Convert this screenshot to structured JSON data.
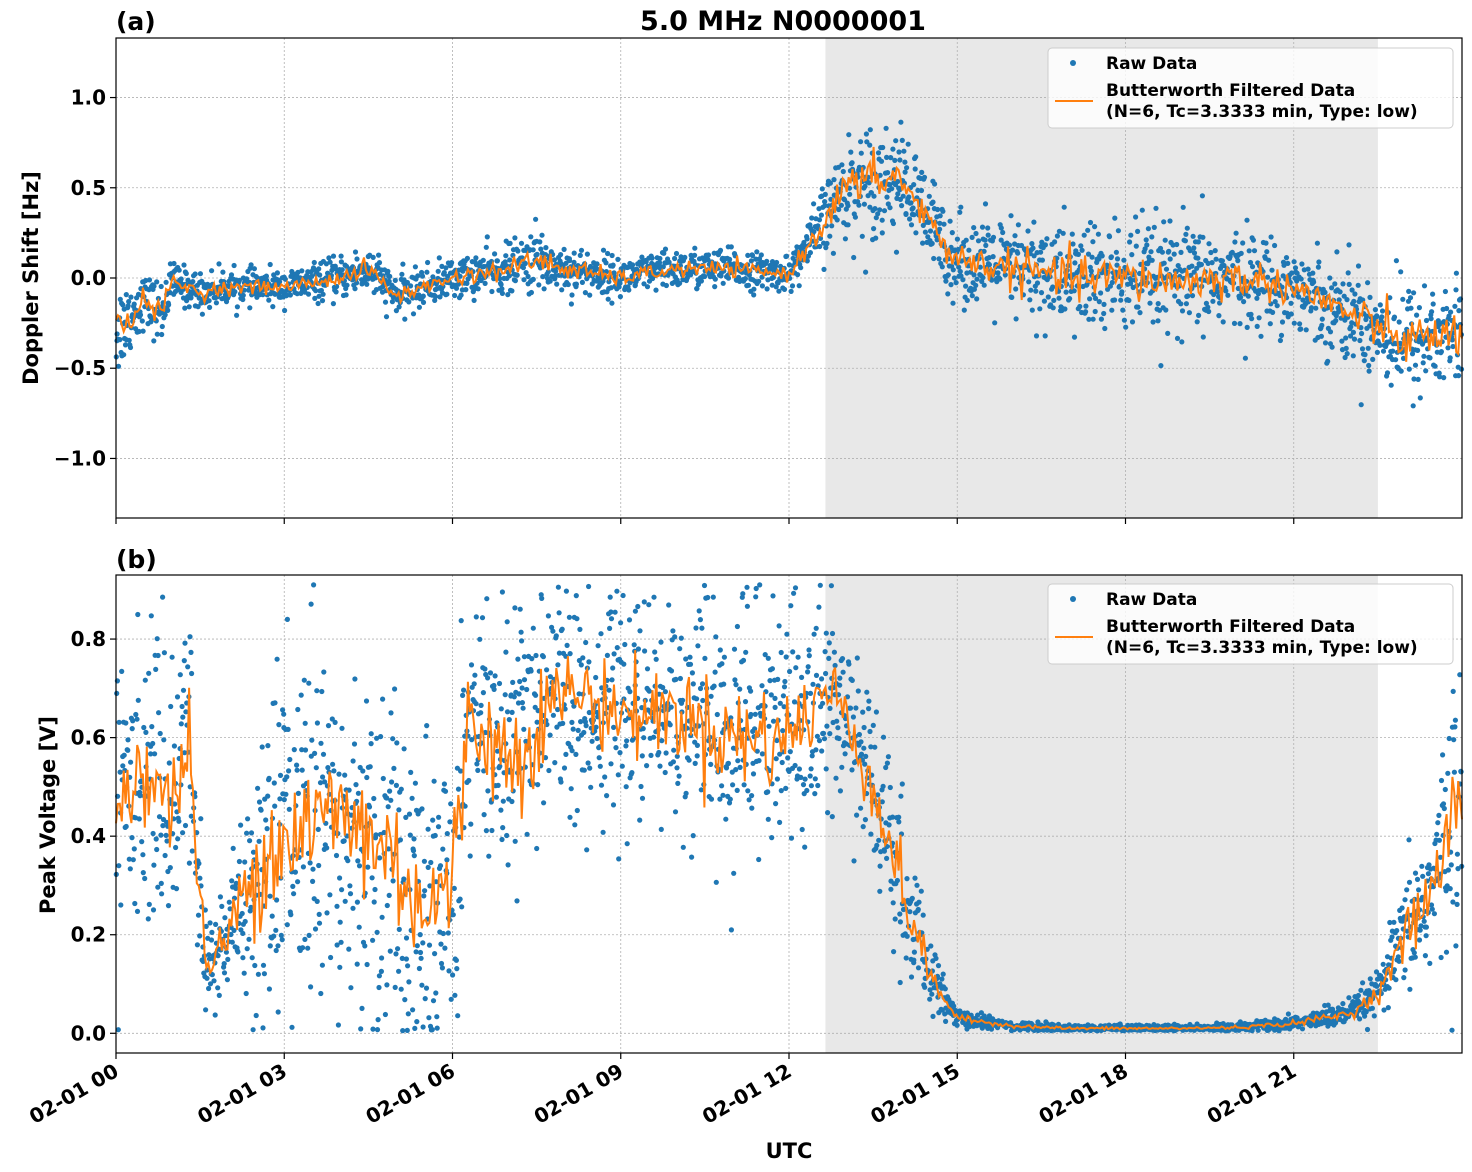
{
  "figure": {
    "title": "5.0 MHz N0000001",
    "xlabel": "UTC",
    "x_ticks": [
      "02-01 00",
      "02-01 03",
      "02-01 06",
      "02-01 09",
      "02-01 12",
      "02-01 15",
      "02-01 18",
      "02-01 21"
    ],
    "shaded_region": {
      "start_hour": 12.65,
      "end_hour": 22.5,
      "color": "#e8e8e8"
    },
    "colors": {
      "raw": "#1f77b4",
      "filtered": "#ff7f0e",
      "grid": "#b0b0b0"
    }
  },
  "legend": {
    "raw_label": "Raw Data",
    "filtered_line1": "Butterworth Filtered Data",
    "filtered_line2": "(N=6, Tc=3.3333 min, Type: low)"
  },
  "chart_data": [
    {
      "type": "scatter",
      "panel_label": "(a)",
      "ylabel": "Doppler Shift [Hz]",
      "xlim_hours": [
        0,
        24
      ],
      "ylim": [
        -1.33,
        1.33
      ],
      "y_ticks": [
        1.0,
        0.5,
        0.0,
        -0.5,
        -1.0
      ],
      "y_tick_labels": [
        "1.0",
        "0.5",
        "0.0",
        "−0.5",
        "−1.0"
      ],
      "legend_position": "top-right",
      "series": [
        {
          "name": "Raw Data",
          "style": "points",
          "x_hours": [
            0,
            0.5,
            0.8,
            1,
            1.5,
            2,
            3,
            4,
            4.5,
            5,
            6,
            7,
            7.5,
            8,
            9,
            10,
            11,
            12,
            12.5,
            13,
            13.5,
            14,
            14.5,
            15,
            16,
            17,
            18,
            19,
            20,
            21,
            22,
            23,
            24
          ],
          "y_center": [
            -0.3,
            -0.12,
            -0.2,
            -0.02,
            -0.08,
            -0.05,
            -0.05,
            0.0,
            0.05,
            -0.1,
            0.0,
            0.05,
            0.1,
            0.05,
            0.0,
            0.05,
            0.05,
            0.02,
            0.25,
            0.5,
            0.55,
            0.55,
            0.3,
            0.1,
            0.05,
            0.0,
            0.0,
            -0.02,
            0.0,
            -0.05,
            -0.2,
            -0.35,
            -0.3
          ],
          "y_spread": [
            0.3,
            0.15,
            0.2,
            0.12,
            0.12,
            0.1,
            0.1,
            0.12,
            0.15,
            0.12,
            0.12,
            0.15,
            0.2,
            0.15,
            0.12,
            0.12,
            0.12,
            0.1,
            0.2,
            0.3,
            0.35,
            0.3,
            0.3,
            0.25,
            0.3,
            0.35,
            0.35,
            0.35,
            0.3,
            0.25,
            0.3,
            0.35,
            0.35
          ]
        },
        {
          "name": "Butterworth Filtered Data\n(N=6, Tc=3.3333 min, Type: low)",
          "style": "line",
          "x_hours": [
            0,
            0.5,
            0.8,
            1,
            1.5,
            2,
            3,
            4,
            4.5,
            5,
            6,
            7,
            7.5,
            8,
            9,
            10,
            11,
            12,
            12.5,
            13,
            13.5,
            14,
            14.5,
            15,
            16,
            17,
            18,
            19,
            20,
            21,
            22,
            23,
            24
          ],
          "y": [
            -0.3,
            -0.12,
            -0.2,
            -0.02,
            -0.08,
            -0.05,
            -0.05,
            0.0,
            0.05,
            -0.1,
            0.0,
            0.05,
            0.1,
            0.05,
            0.0,
            0.05,
            0.05,
            0.02,
            0.25,
            0.5,
            0.55,
            0.55,
            0.3,
            0.1,
            0.05,
            0.0,
            0.0,
            -0.02,
            0.0,
            -0.05,
            -0.2,
            -0.35,
            -0.3
          ]
        }
      ]
    },
    {
      "type": "scatter",
      "panel_label": "(b)",
      "ylabel": "Peak Voltage [V]",
      "xlim_hours": [
        0,
        24
      ],
      "ylim": [
        -0.04,
        0.93
      ],
      "y_ticks": [
        0.8,
        0.6,
        0.4,
        0.2,
        0.0
      ],
      "y_tick_labels": [
        "0.8",
        "0.6",
        "0.4",
        "0.2",
        "0.0"
      ],
      "legend_position": "top-right",
      "series": [
        {
          "name": "Raw Data",
          "style": "points",
          "x_hours": [
            0,
            0.5,
            1,
            1.3,
            1.6,
            2,
            2.5,
            3,
            4,
            5,
            5.5,
            6,
            6.3,
            7,
            8,
            9,
            10,
            11,
            12,
            12.7,
            13,
            13.5,
            14,
            14.5,
            15,
            16,
            17,
            18,
            19,
            20,
            21,
            22,
            22.5,
            23,
            23.5,
            24
          ],
          "y_center": [
            0.45,
            0.55,
            0.45,
            0.6,
            0.12,
            0.2,
            0.35,
            0.4,
            0.45,
            0.35,
            0.25,
            0.3,
            0.65,
            0.55,
            0.7,
            0.65,
            0.65,
            0.6,
            0.6,
            0.7,
            0.65,
            0.5,
            0.3,
            0.12,
            0.03,
            0.015,
            0.01,
            0.01,
            0.01,
            0.012,
            0.02,
            0.04,
            0.08,
            0.2,
            0.3,
            0.5
          ],
          "y_spread": [
            0.3,
            0.3,
            0.3,
            0.3,
            0.12,
            0.15,
            0.35,
            0.4,
            0.4,
            0.4,
            0.35,
            0.4,
            0.3,
            0.35,
            0.25,
            0.25,
            0.25,
            0.3,
            0.3,
            0.2,
            0.2,
            0.2,
            0.2,
            0.08,
            0.02,
            0.01,
            0.008,
            0.008,
            0.008,
            0.01,
            0.015,
            0.03,
            0.05,
            0.12,
            0.2,
            0.35
          ]
        },
        {
          "name": "Butterworth Filtered Data\n(N=6, Tc=3.3333 min, Type: low)",
          "style": "line",
          "x_hours": [
            0,
            0.5,
            1,
            1.3,
            1.6,
            2,
            2.5,
            3,
            4,
            5,
            5.5,
            6,
            6.3,
            7,
            8,
            9,
            10,
            11,
            12,
            12.7,
            13,
            13.5,
            14,
            14.5,
            15,
            16,
            17,
            18,
            19,
            20,
            21,
            22,
            22.5,
            23,
            23.5,
            24
          ],
          "y": [
            0.45,
            0.55,
            0.45,
            0.6,
            0.12,
            0.2,
            0.35,
            0.4,
            0.45,
            0.35,
            0.25,
            0.3,
            0.65,
            0.55,
            0.7,
            0.65,
            0.65,
            0.6,
            0.6,
            0.7,
            0.65,
            0.5,
            0.3,
            0.12,
            0.03,
            0.015,
            0.01,
            0.01,
            0.01,
            0.012,
            0.02,
            0.04,
            0.08,
            0.2,
            0.3,
            0.5
          ]
        }
      ]
    }
  ]
}
